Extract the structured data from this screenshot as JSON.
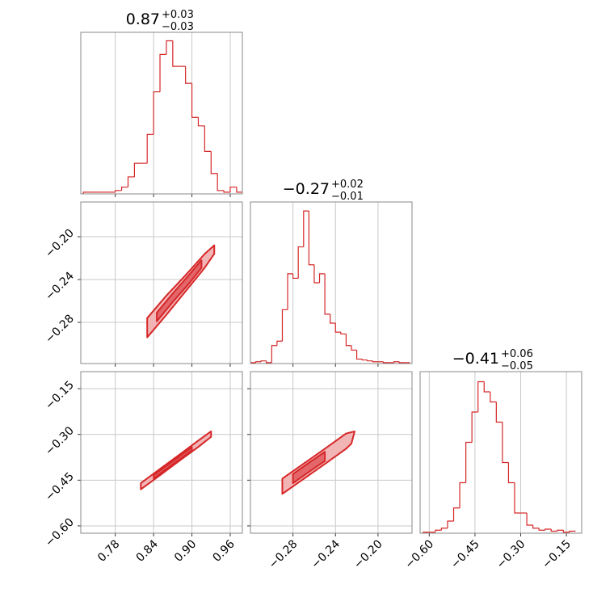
{
  "chart_data": [
    {
      "type": "histogram",
      "color": "#d62728",
      "title": "0.87",
      "title_upper": "+0.03",
      "title_lower": "−0.03",
      "bins": [
        0.73,
        0.74,
        0.75,
        0.76,
        0.77,
        0.78,
        0.79,
        0.8,
        0.81,
        0.82,
        0.83,
        0.84,
        0.85,
        0.86,
        0.87,
        0.88,
        0.89,
        0.9,
        0.91,
        0.92,
        0.93,
        0.94,
        0.95,
        0.96,
        0.97,
        0.98
      ],
      "counts": [
        1,
        1,
        1,
        1,
        1,
        2,
        4,
        10,
        18,
        18,
        35,
        60,
        82,
        90,
        75,
        75,
        65,
        45,
        40,
        25,
        12,
        2,
        1,
        4,
        1
      ],
      "xlim": [
        0.726,
        0.979
      ],
      "ylim": [
        0,
        95
      ],
      "xticks": [
        0.78,
        0.84,
        0.9,
        0.96
      ],
      "grid": true
    },
    {
      "type": "contour",
      "color": "#d62728",
      "xlim": [
        0.726,
        0.979
      ],
      "ylim": [
        -0.3185,
        -0.1675
      ],
      "xticks": [
        0.78,
        0.84,
        0.9,
        0.96
      ],
      "yticks": [
        {
          "value": -0.2,
          "label": "−0.20"
        },
        {
          "value": -0.24,
          "label": "−0.24"
        },
        {
          "value": -0.28,
          "label": "−0.28"
        }
      ],
      "contours": [
        {
          "x": [
            0.83,
            0.86,
            0.89,
            0.92,
            0.935,
            0.935,
            0.92,
            0.89,
            0.86,
            0.83
          ],
          "y": [
            -0.276,
            -0.255,
            -0.236,
            -0.216,
            -0.208,
            -0.216,
            -0.229,
            -0.251,
            -0.273,
            -0.294
          ]
        },
        {
          "x": [
            0.845,
            0.87,
            0.895,
            0.915,
            0.915,
            0.895,
            0.87,
            0.845
          ],
          "y": [
            -0.271,
            -0.253,
            -0.236,
            -0.222,
            -0.229,
            -0.244,
            -0.261,
            -0.279
          ]
        }
      ],
      "grid": true
    },
    {
      "type": "histogram",
      "color": "#d62728",
      "title": "−0.27",
      "title_upper": "+0.02",
      "title_lower": "−0.01",
      "bins": [
        -0.32,
        -0.315,
        -0.31,
        -0.305,
        -0.3,
        -0.295,
        -0.29,
        -0.285,
        -0.28,
        -0.275,
        -0.27,
        -0.265,
        -0.26,
        -0.255,
        -0.25,
        -0.245,
        -0.24,
        -0.235,
        -0.23,
        -0.225,
        -0.22,
        -0.215,
        -0.21,
        -0.205,
        -0.2,
        -0.195,
        -0.19,
        -0.185,
        -0.18,
        -0.175,
        -0.17
      ],
      "counts": [
        1,
        2,
        3,
        1,
        20,
        25,
        60,
        100,
        95,
        130,
        170,
        110,
        90,
        100,
        55,
        45,
        35,
        33,
        20,
        15,
        5,
        4,
        3,
        2,
        2,
        1,
        1,
        2,
        1,
        1
      ],
      "xlim": [
        -0.32,
        -0.168
      ],
      "ylim": [
        0,
        180
      ],
      "xticks": [
        -0.28,
        -0.24,
        -0.2
      ],
      "grid": true
    },
    {
      "type": "contour",
      "color": "#d62728",
      "xlim": [
        0.726,
        0.979
      ],
      "ylim": [
        -0.624,
        -0.094
      ],
      "xticks": [
        {
          "value": 0.78,
          "label": "0.78"
        },
        {
          "value": 0.84,
          "label": "0.84"
        },
        {
          "value": 0.9,
          "label": "0.90"
        },
        {
          "value": 0.96,
          "label": "0.96"
        }
      ],
      "yticks": [
        {
          "value": -0.15,
          "label": "−0.15"
        },
        {
          "value": -0.3,
          "label": "−0.30"
        },
        {
          "value": -0.45,
          "label": "−0.45"
        },
        {
          "value": -0.6,
          "label": "−0.60"
        }
      ],
      "contours": [
        {
          "x": [
            0.82,
            0.85,
            0.88,
            0.91,
            0.93,
            0.93,
            0.91,
            0.88,
            0.85,
            0.82
          ],
          "y": [
            -0.46,
            -0.413,
            -0.367,
            -0.32,
            -0.29,
            -0.308,
            -0.341,
            -0.387,
            -0.434,
            -0.48
          ]
        },
        {
          "x": [
            0.84,
            0.87,
            0.9,
            0.9,
            0.87,
            0.84
          ],
          "y": [
            -0.434,
            -0.388,
            -0.342,
            -0.352,
            -0.398,
            -0.444
          ]
        }
      ],
      "grid": true
    },
    {
      "type": "contour",
      "color": "#d62728",
      "xlim": [
        -0.32,
        -0.168
      ],
      "ylim": [
        -0.624,
        -0.094
      ],
      "xticks": [
        {
          "value": -0.28,
          "label": "−0.28"
        },
        {
          "value": -0.24,
          "label": "−0.24"
        },
        {
          "value": -0.2,
          "label": "−0.20"
        }
      ],
      "yticks": [
        -0.15,
        -0.3,
        -0.45,
        -0.6
      ],
      "contours": [
        {
          "x": [
            -0.29,
            -0.27,
            -0.25,
            -0.23,
            -0.222,
            -0.225,
            -0.23,
            -0.25,
            -0.27,
            -0.29
          ],
          "y": [
            -0.445,
            -0.396,
            -0.347,
            -0.297,
            -0.29,
            -0.33,
            -0.347,
            -0.397,
            -0.446,
            -0.495
          ]
        },
        {
          "x": [
            -0.28,
            -0.265,
            -0.25,
            -0.25,
            -0.265,
            -0.28
          ],
          "y": [
            -0.43,
            -0.393,
            -0.357,
            -0.387,
            -0.423,
            -0.46
          ]
        }
      ],
      "grid": true
    },
    {
      "type": "histogram",
      "color": "#d62728",
      "title": "−0.41",
      "title_upper": "+0.06",
      "title_lower": "−0.05",
      "bins": [
        -0.62,
        -0.6,
        -0.58,
        -0.56,
        -0.54,
        -0.52,
        -0.5,
        -0.48,
        -0.46,
        -0.44,
        -0.42,
        -0.4,
        -0.38,
        -0.36,
        -0.34,
        -0.32,
        -0.3,
        -0.28,
        -0.26,
        -0.24,
        -0.22,
        -0.2,
        -0.18,
        -0.16,
        -0.14,
        -0.12
      ],
      "counts": [
        1,
        1,
        3,
        5,
        12,
        25,
        50,
        90,
        120,
        150,
        140,
        130,
        110,
        70,
        50,
        20,
        20,
        8,
        5,
        3,
        4,
        2,
        3,
        1,
        2
      ],
      "xlim": [
        -0.63,
        -0.1
      ],
      "ylim": [
        0,
        160
      ],
      "xticks": [
        {
          "value": -0.6,
          "label": "−0.60"
        },
        {
          "value": -0.45,
          "label": "−0.45"
        },
        {
          "value": -0.3,
          "label": "−0.30"
        },
        {
          "value": -0.15,
          "label": "−0.15"
        }
      ],
      "grid": true
    }
  ]
}
